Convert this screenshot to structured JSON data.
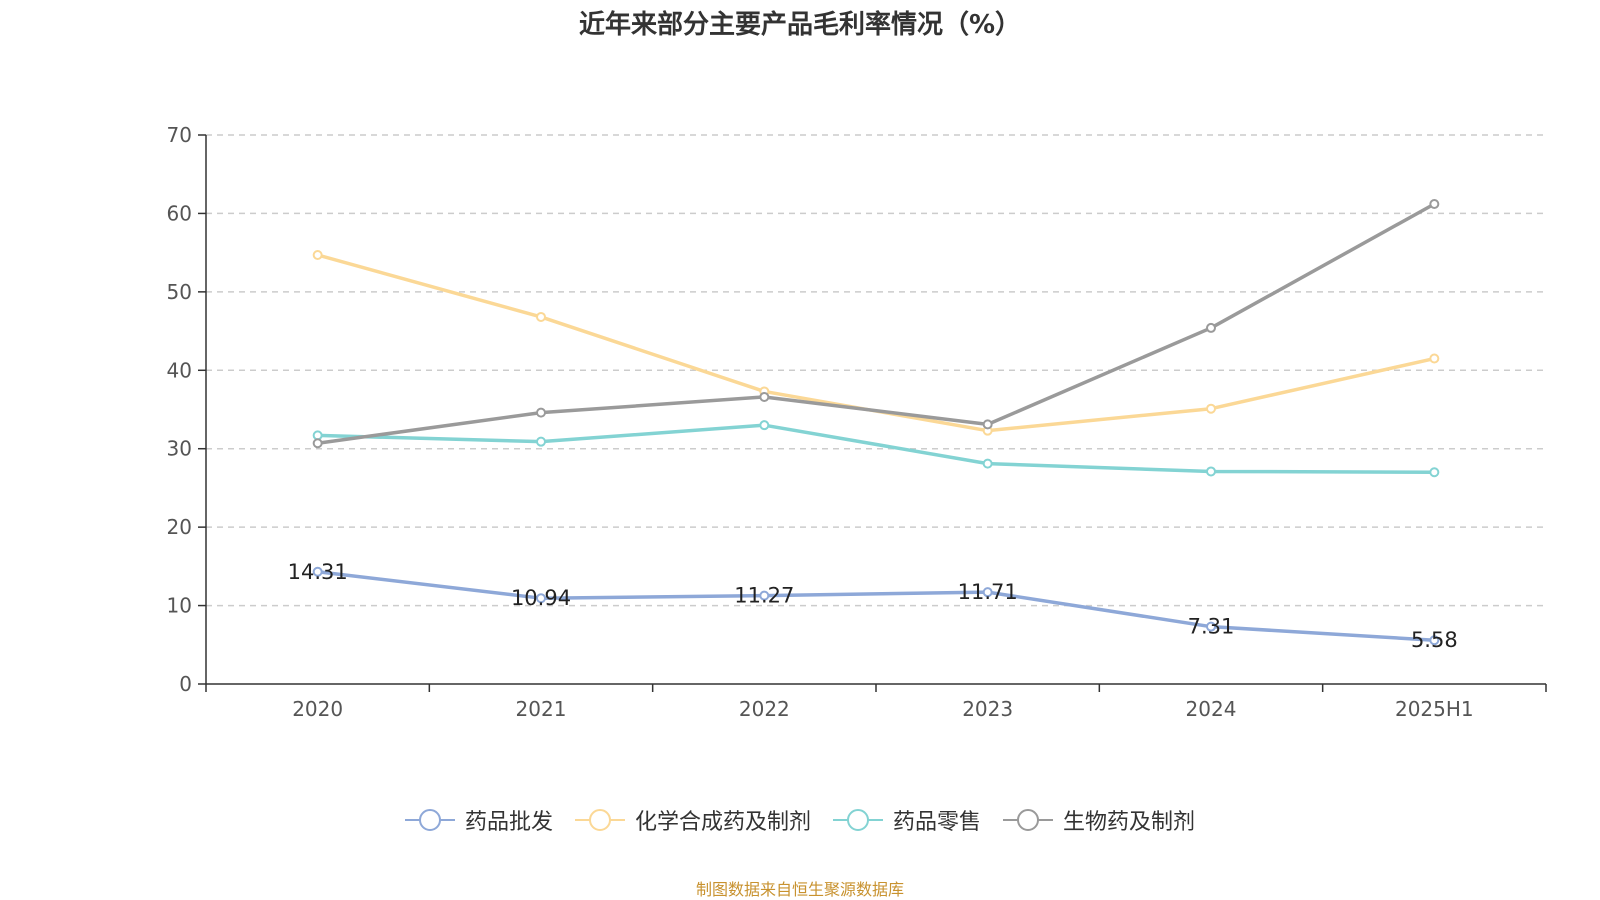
{
  "chart_data": {
    "type": "line",
    "title": "近年来部分主要产品毛利率情况（%）",
    "categories": [
      "2020",
      "2021",
      "2022",
      "2023",
      "2024",
      "2025H1"
    ],
    "ylim": [
      0,
      70
    ],
    "yticks": [
      "0",
      "10",
      "20",
      "30",
      "40",
      "50",
      "60",
      "70"
    ],
    "grid": true,
    "legend_position": "bottom",
    "series": [
      {
        "name": "药品批发",
        "color": "#8ea8d8",
        "values": [
          14.31,
          10.94,
          11.27,
          11.71,
          7.31,
          5.58
        ],
        "labels": [
          "14.31",
          "10.94",
          "11.27",
          "11.71",
          "7.31",
          "5.58"
        ]
      },
      {
        "name": "化学合成药及制剂",
        "color": "#fbd896",
        "values": [
          54.7,
          46.8,
          37.3,
          32.3,
          35.1,
          41.5
        ]
      },
      {
        "name": "药品零售",
        "color": "#83d3d3",
        "values": [
          31.7,
          30.9,
          33.0,
          28.1,
          27.1,
          27.0
        ]
      },
      {
        "name": "生物药及制剂",
        "color": "#9a9a9a",
        "values": [
          30.7,
          34.6,
          36.6,
          33.1,
          45.4,
          61.2
        ]
      }
    ]
  },
  "footer": {
    "source": "制图数据来自恒生聚源数据库"
  }
}
